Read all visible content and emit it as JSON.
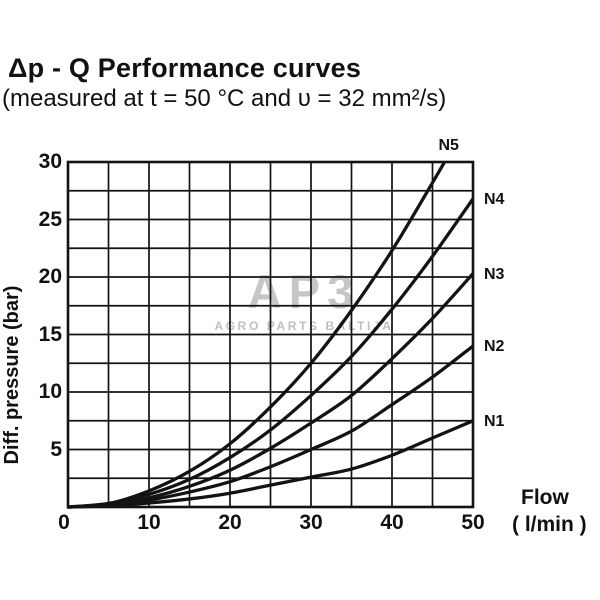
{
  "header": {
    "title": "Δp - Q Performance curves",
    "subtitle": "(measured at t = 50 °C and υ = 32 mm²/s)"
  },
  "watermark": {
    "logo": "AP3",
    "caption": "AGRO PARTS BALTIJA"
  },
  "chart_data": {
    "type": "line",
    "title": "Δp - Q Performance curves",
    "subtitle": "(measured at t = 50 °C and υ = 32 mm²/s)",
    "xlabel": "Flow ( l/min )",
    "xlabel_line1": "Flow",
    "xlabel_line2": "( l/min )",
    "ylabel": "Diff. pressure (bar)",
    "xlim": [
      0,
      50
    ],
    "ylim": [
      0,
      30
    ],
    "x_grid_step": 5,
    "y_grid_step": 2.5,
    "grid": true,
    "legend_position": "right-edge-labels",
    "line_color": "#131313",
    "x_ticks": [
      0,
      10,
      20,
      30,
      40,
      50
    ],
    "y_ticks": [
      5,
      10,
      15,
      20,
      25,
      30
    ],
    "series": [
      {
        "name": "N5",
        "points": [
          [
            0,
            0
          ],
          [
            5,
            0.3
          ],
          [
            10,
            1.4
          ],
          [
            15,
            3.1
          ],
          [
            20,
            5.5
          ],
          [
            25,
            8.7
          ],
          [
            30,
            12.5
          ],
          [
            35,
            17.1
          ],
          [
            40,
            22.3
          ],
          [
            45,
            28.2
          ],
          [
            47.3,
            31
          ]
        ]
      },
      {
        "name": "N4",
        "points": [
          [
            0,
            0
          ],
          [
            5,
            0.3
          ],
          [
            10,
            1.1
          ],
          [
            15,
            2.4
          ],
          [
            20,
            4.3
          ],
          [
            25,
            6.7
          ],
          [
            30,
            9.7
          ],
          [
            35,
            13.1
          ],
          [
            40,
            17.2
          ],
          [
            45,
            21.8
          ],
          [
            50,
            26.8
          ]
        ]
      },
      {
        "name": "N3",
        "points": [
          [
            0,
            0
          ],
          [
            5,
            0.2
          ],
          [
            10,
            0.8
          ],
          [
            15,
            1.8
          ],
          [
            20,
            3.2
          ],
          [
            25,
            5.1
          ],
          [
            30,
            7.3
          ],
          [
            35,
            9.7
          ],
          [
            40,
            12.9
          ],
          [
            45,
            16.4
          ],
          [
            50,
            20.3
          ]
        ]
      },
      {
        "name": "N2",
        "points": [
          [
            0,
            0
          ],
          [
            5,
            0.15
          ],
          [
            10,
            0.6
          ],
          [
            15,
            1.3
          ],
          [
            20,
            2.2
          ],
          [
            25,
            3.5
          ],
          [
            30,
            5.0
          ],
          [
            35,
            6.6
          ],
          [
            40,
            8.9
          ],
          [
            45,
            11.3
          ],
          [
            50,
            14.0
          ]
        ]
      },
      {
        "name": "N1",
        "points": [
          [
            0,
            0
          ],
          [
            5,
            0.1
          ],
          [
            10,
            0.35
          ],
          [
            15,
            0.7
          ],
          [
            20,
            1.2
          ],
          [
            25,
            1.9
          ],
          [
            30,
            2.6
          ],
          [
            35,
            3.3
          ],
          [
            40,
            4.5
          ],
          [
            45,
            6.0
          ],
          [
            50,
            7.5
          ]
        ]
      }
    ]
  }
}
